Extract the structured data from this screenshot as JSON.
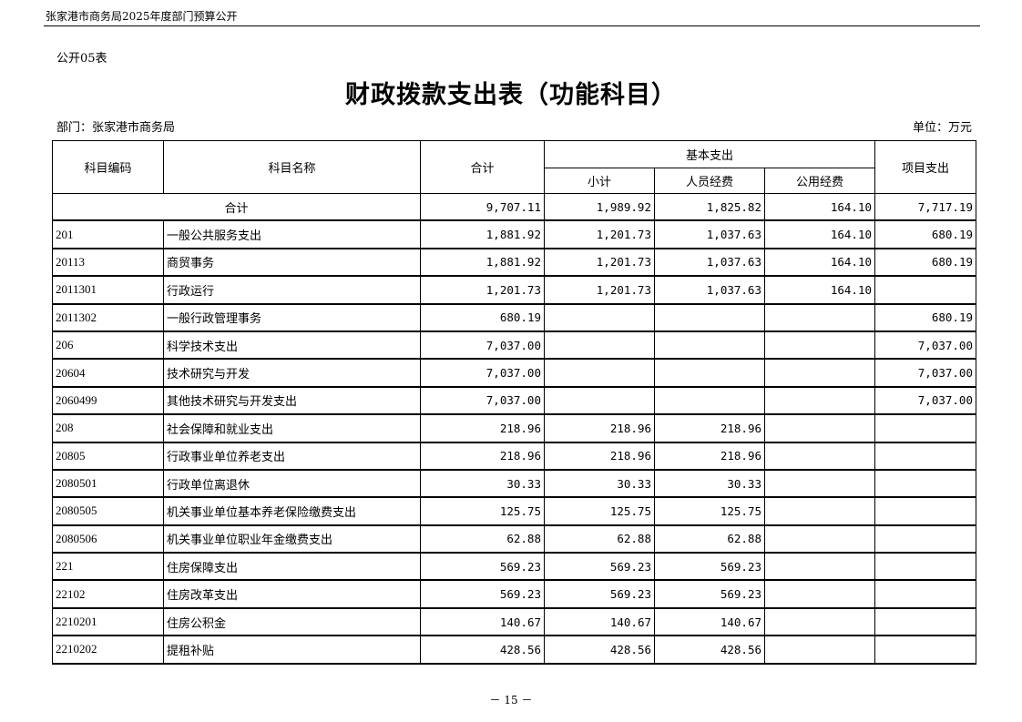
{
  "header": {
    "doc_title": "张家港市商务局2025年度部门预算公开"
  },
  "table_no": "公开05表",
  "title": "财政拨款支出表（功能科目）",
  "department": "部门：张家港市商务局",
  "unit": "单位：万元",
  "columns": {
    "code": "科目编码",
    "name": "科目名称",
    "total": "合计",
    "basic": "基本支出",
    "subtotal": "小计",
    "personnel": "人员经费",
    "public": "公用经费",
    "project": "项目支出"
  },
  "total_row": {
    "label": "合计",
    "total": "9,707.11",
    "subtotal": "1,989.92",
    "personnel": "1,825.82",
    "public": "164.10",
    "project": "7,717.19"
  },
  "rows": [
    {
      "code": "201",
      "name": "一般公共服务支出",
      "total": "1,881.92",
      "subtotal": "1,201.73",
      "personnel": "1,037.63",
      "public": "164.10",
      "project": "680.19"
    },
    {
      "code": "20113",
      "name": "商贸事务",
      "total": "1,881.92",
      "subtotal": "1,201.73",
      "personnel": "1,037.63",
      "public": "164.10",
      "project": "680.19"
    },
    {
      "code": "2011301",
      "name": "行政运行",
      "total": "1,201.73",
      "subtotal": "1,201.73",
      "personnel": "1,037.63",
      "public": "164.10",
      "project": ""
    },
    {
      "code": "2011302",
      "name": "一般行政管理事务",
      "total": "680.19",
      "subtotal": "",
      "personnel": "",
      "public": "",
      "project": "680.19"
    },
    {
      "code": "206",
      "name": "科学技术支出",
      "total": "7,037.00",
      "subtotal": "",
      "personnel": "",
      "public": "",
      "project": "7,037.00"
    },
    {
      "code": "20604",
      "name": "技术研究与开发",
      "total": "7,037.00",
      "subtotal": "",
      "personnel": "",
      "public": "",
      "project": "7,037.00"
    },
    {
      "code": "2060499",
      "name": "其他技术研究与开发支出",
      "total": "7,037.00",
      "subtotal": "",
      "personnel": "",
      "public": "",
      "project": "7,037.00"
    },
    {
      "code": "208",
      "name": "社会保障和就业支出",
      "total": "218.96",
      "subtotal": "218.96",
      "personnel": "218.96",
      "public": "",
      "project": ""
    },
    {
      "code": "20805",
      "name": "行政事业单位养老支出",
      "total": "218.96",
      "subtotal": "218.96",
      "personnel": "218.96",
      "public": "",
      "project": ""
    },
    {
      "code": "2080501",
      "name": "行政单位离退休",
      "total": "30.33",
      "subtotal": "30.33",
      "personnel": "30.33",
      "public": "",
      "project": ""
    },
    {
      "code": "2080505",
      "name": "机关事业单位基本养老保险缴费支出",
      "total": "125.75",
      "subtotal": "125.75",
      "personnel": "125.75",
      "public": "",
      "project": ""
    },
    {
      "code": "2080506",
      "name": "机关事业单位职业年金缴费支出",
      "total": "62.88",
      "subtotal": "62.88",
      "personnel": "62.88",
      "public": "",
      "project": ""
    },
    {
      "code": "221",
      "name": "住房保障支出",
      "total": "569.23",
      "subtotal": "569.23",
      "personnel": "569.23",
      "public": "",
      "project": ""
    },
    {
      "code": "22102",
      "name": "住房改革支出",
      "total": "569.23",
      "subtotal": "569.23",
      "personnel": "569.23",
      "public": "",
      "project": ""
    },
    {
      "code": "2210201",
      "name": "住房公积金",
      "total": "140.67",
      "subtotal": "140.67",
      "personnel": "140.67",
      "public": "",
      "project": ""
    },
    {
      "code": "2210202",
      "name": "提租补贴",
      "total": "428.56",
      "subtotal": "428.56",
      "personnel": "428.56",
      "public": "",
      "project": ""
    }
  ],
  "page_number": "－ 15 －"
}
